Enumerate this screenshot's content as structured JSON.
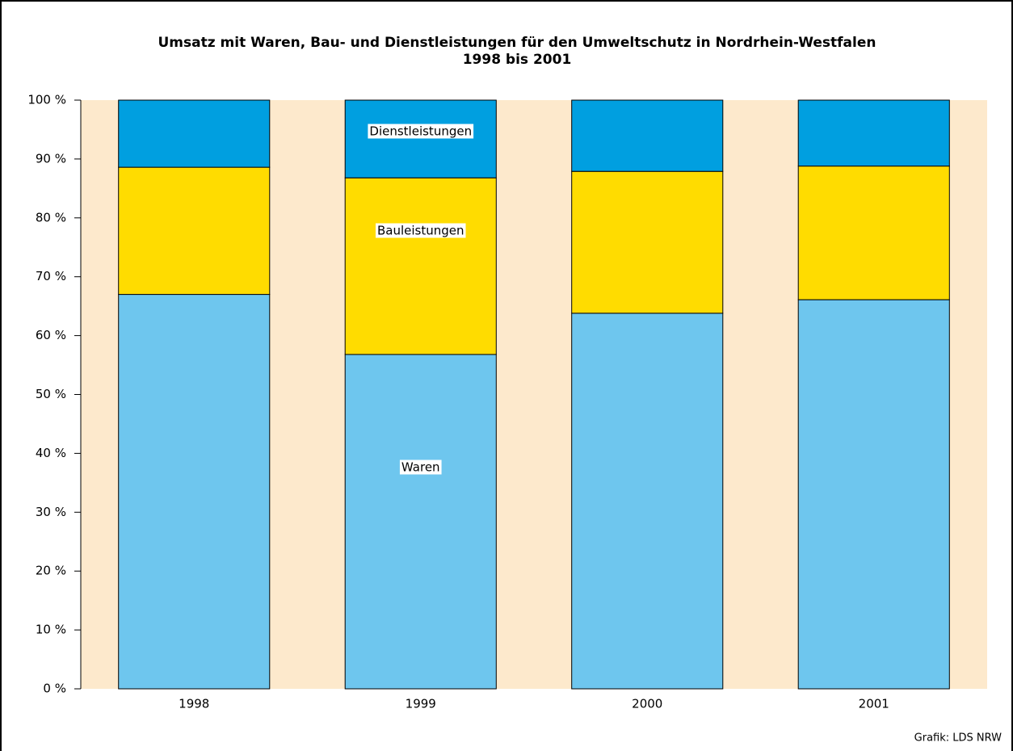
{
  "chart_data": {
    "type": "stacked_bar",
    "title": "Umsatz mit Waren, Bau- und Dienstleistungen für den Umweltschutz in Nordrhein-Westfalen",
    "subtitle": "1998 bis 2001",
    "categories": [
      "1998",
      "1999",
      "2000",
      "2001"
    ],
    "series": [
      {
        "name": "Waren",
        "color": "#6ec6ee",
        "values": [
          67.0,
          56.8,
          63.8,
          66.1
        ]
      },
      {
        "name": "Bauleistungen",
        "color": "#ffdc00",
        "values": [
          21.6,
          30.0,
          24.1,
          22.7
        ]
      },
      {
        "name": "Dienstleistungen",
        "color": "#009fe0",
        "values": [
          11.4,
          13.2,
          12.1,
          11.2
        ]
      }
    ],
    "ylim": [
      0,
      100
    ],
    "yticks": [
      {
        "value": 0,
        "label": "0 %"
      },
      {
        "value": 10,
        "label": "10 %"
      },
      {
        "value": 20,
        "label": "20 %"
      },
      {
        "value": 30,
        "label": "30 %"
      },
      {
        "value": 40,
        "label": "40 %"
      },
      {
        "value": 50,
        "label": "50 %"
      },
      {
        "value": 60,
        "label": "60 %"
      },
      {
        "value": 70,
        "label": "70 %"
      },
      {
        "value": 80,
        "label": "80 %"
      },
      {
        "value": 90,
        "label": "90 %"
      },
      {
        "value": 100,
        "label": "100 %"
      }
    ],
    "plot_background": "#fde9cc",
    "source": "Grafik: LDS NRW"
  }
}
